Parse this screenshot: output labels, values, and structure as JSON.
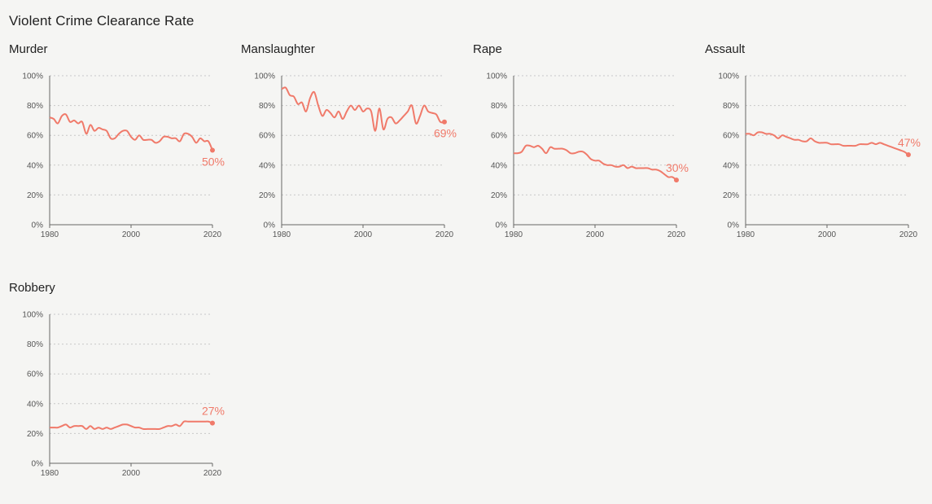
{
  "page": {
    "title": "Violent Crime Clearance Rate"
  },
  "colors": {
    "line": "#f07a6a",
    "grid": "#c8c8c8",
    "axis": "#666666",
    "background": "#f5f5f3"
  },
  "chart_data": [
    {
      "type": "line",
      "title": "Murder",
      "x": [
        1980,
        1981,
        1982,
        1983,
        1984,
        1985,
        1986,
        1987,
        1988,
        1989,
        1990,
        1991,
        1992,
        1993,
        1994,
        1995,
        1996,
        1997,
        1998,
        1999,
        2000,
        2001,
        2002,
        2003,
        2004,
        2005,
        2006,
        2007,
        2008,
        2009,
        2010,
        2011,
        2012,
        2013,
        2014,
        2015,
        2016,
        2017,
        2018,
        2019,
        2020
      ],
      "values": [
        72,
        71,
        68,
        73,
        74,
        69,
        70,
        68,
        69,
        61,
        67,
        63,
        65,
        64,
        63,
        58,
        58,
        61,
        63,
        63,
        59,
        57,
        60,
        57,
        57,
        57,
        55,
        56,
        59,
        59,
        58,
        58,
        56,
        61,
        61,
        59,
        55,
        58,
        56,
        56,
        50
      ],
      "end_label": "50%",
      "x_ticks": [
        "1980",
        "2000",
        "2020"
      ],
      "x_tick_values": [
        1980,
        2000,
        2020
      ],
      "y_ticks": [
        "0%",
        "20%",
        "40%",
        "60%",
        "80%",
        "100%"
      ],
      "ylim": [
        0,
        100
      ],
      "xlim": [
        1980,
        2020
      ],
      "grid": true
    },
    {
      "type": "line",
      "title": "Manslaughter",
      "x": [
        1980,
        1981,
        1982,
        1983,
        1984,
        1985,
        1986,
        1987,
        1988,
        1989,
        1990,
        1991,
        1992,
        1993,
        1994,
        1995,
        1996,
        1997,
        1998,
        1999,
        2000,
        2001,
        2002,
        2003,
        2004,
        2005,
        2006,
        2007,
        2008,
        2009,
        2010,
        2011,
        2012,
        2013,
        2014,
        2015,
        2016,
        2017,
        2018,
        2019,
        2020
      ],
      "values": [
        91,
        92,
        87,
        86,
        81,
        82,
        76,
        85,
        89,
        80,
        73,
        77,
        75,
        72,
        76,
        71,
        76,
        80,
        77,
        80,
        76,
        78,
        76,
        63,
        78,
        64,
        71,
        72,
        68,
        70,
        73,
        76,
        80,
        68,
        73,
        80,
        76,
        75,
        74,
        69,
        69
      ],
      "end_label": "69%",
      "x_ticks": [
        "1980",
        "2000",
        "2020"
      ],
      "x_tick_values": [
        1980,
        2000,
        2020
      ],
      "y_ticks": [
        "0%",
        "20%",
        "40%",
        "60%",
        "80%",
        "100%"
      ],
      "ylim": [
        0,
        100
      ],
      "xlim": [
        1980,
        2020
      ],
      "grid": true
    },
    {
      "type": "line",
      "title": "Rape",
      "x": [
        1980,
        1981,
        1982,
        1983,
        1984,
        1985,
        1986,
        1987,
        1988,
        1989,
        1990,
        1991,
        1992,
        1993,
        1994,
        1995,
        1996,
        1997,
        1998,
        1999,
        2000,
        2001,
        2002,
        2003,
        2004,
        2005,
        2006,
        2007,
        2008,
        2009,
        2010,
        2011,
        2012,
        2013,
        2014,
        2015,
        2016,
        2017,
        2018,
        2019,
        2020
      ],
      "values": [
        48,
        48,
        49,
        53,
        53,
        52,
        53,
        51,
        48,
        52,
        51,
        51,
        51,
        50,
        48,
        48,
        49,
        49,
        47,
        44,
        43,
        43,
        41,
        40,
        40,
        39,
        39,
        40,
        38,
        39,
        38,
        38,
        38,
        38,
        37,
        37,
        36,
        34,
        32,
        32,
        30
      ],
      "end_label": "30%",
      "x_ticks": [
        "1980",
        "2000",
        "2020"
      ],
      "x_tick_values": [
        1980,
        2000,
        2020
      ],
      "y_ticks": [
        "0%",
        "20%",
        "40%",
        "60%",
        "80%",
        "100%"
      ],
      "ylim": [
        0,
        100
      ],
      "xlim": [
        1980,
        2020
      ],
      "grid": true
    },
    {
      "type": "line",
      "title": "Assault",
      "x": [
        1980,
        1981,
        1982,
        1983,
        1984,
        1985,
        1986,
        1987,
        1988,
        1989,
        1990,
        1991,
        1992,
        1993,
        1994,
        1995,
        1996,
        1997,
        1998,
        1999,
        2000,
        2001,
        2002,
        2003,
        2004,
        2005,
        2006,
        2007,
        2008,
        2009,
        2010,
        2011,
        2012,
        2013,
        2014,
        2015,
        2016,
        2017,
        2018,
        2019,
        2020
      ],
      "values": [
        61,
        61,
        60,
        62,
        62,
        61,
        61,
        60,
        58,
        60,
        59,
        58,
        57,
        57,
        56,
        56,
        58,
        56,
        55,
        55,
        55,
        54,
        54,
        54,
        53,
        53,
        53,
        53,
        54,
        54,
        54,
        55,
        54,
        55,
        54,
        53,
        52,
        51,
        50,
        49,
        47
      ],
      "end_label": "47%",
      "x_ticks": [
        "1980",
        "2000",
        "2020"
      ],
      "x_tick_values": [
        1980,
        2000,
        2020
      ],
      "y_ticks": [
        "0%",
        "20%",
        "40%",
        "60%",
        "80%",
        "100%"
      ],
      "ylim": [
        0,
        100
      ],
      "xlim": [
        1980,
        2020
      ],
      "grid": true
    },
    {
      "type": "line",
      "title": "Robbery",
      "x": [
        1980,
        1981,
        1982,
        1983,
        1984,
        1985,
        1986,
        1987,
        1988,
        1989,
        1990,
        1991,
        1992,
        1993,
        1994,
        1995,
        1996,
        1997,
        1998,
        1999,
        2000,
        2001,
        2002,
        2003,
        2004,
        2005,
        2006,
        2007,
        2008,
        2009,
        2010,
        2011,
        2012,
        2013,
        2014,
        2015,
        2016,
        2017,
        2018,
        2019,
        2020
      ],
      "values": [
        24,
        24,
        24,
        25,
        26,
        24,
        25,
        25,
        25,
        23,
        25,
        23,
        24,
        23,
        24,
        23,
        24,
        25,
        26,
        26,
        25,
        24,
        24,
        23,
        23,
        23,
        23,
        23,
        24,
        25,
        25,
        26,
        25,
        28,
        28,
        28,
        28,
        28,
        28,
        28,
        27
      ],
      "end_label": "27%",
      "x_ticks": [
        "1980",
        "2000",
        "2020"
      ],
      "x_tick_values": [
        1980,
        2000,
        2020
      ],
      "y_ticks": [
        "0%",
        "20%",
        "40%",
        "60%",
        "80%",
        "100%"
      ],
      "ylim": [
        0,
        100
      ],
      "xlim": [
        1980,
        2020
      ],
      "grid": true
    }
  ]
}
